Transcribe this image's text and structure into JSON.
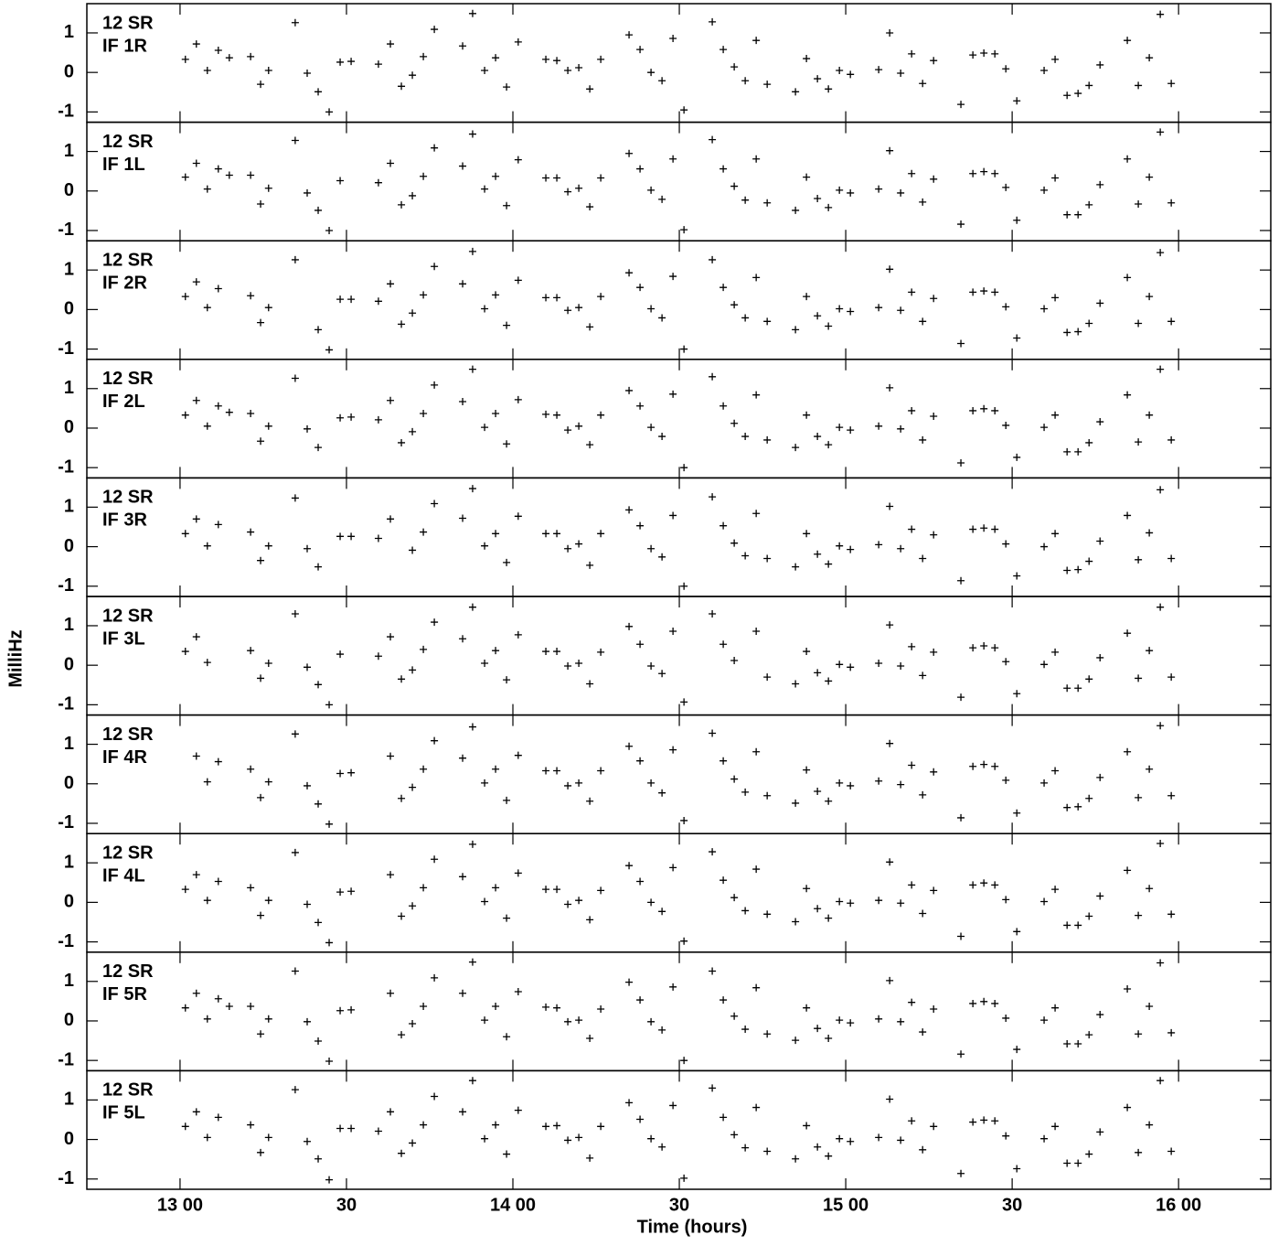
{
  "chart_data": {
    "type": "scatter",
    "ylabel": "MilliHz",
    "xlabel": "Time (hours)",
    "xlim": [
      12.72,
      16.277
    ],
    "xticks": [
      {
        "value": 13,
        "label": "13 00"
      },
      {
        "value": 13.5,
        "label": "30"
      },
      {
        "value": 14,
        "label": "14 00"
      },
      {
        "value": 14.5,
        "label": "30"
      },
      {
        "value": 15,
        "label": "15 00"
      },
      {
        "value": 15.5,
        "label": "30"
      },
      {
        "value": 16,
        "label": "16 00"
      }
    ],
    "ylim": [
      -1.26,
      1.74
    ],
    "yticks": [
      -1,
      0,
      1
    ],
    "color": "#000000",
    "x": [
      13.016,
      13.049,
      13.082,
      13.115,
      13.148,
      13.212,
      13.242,
      13.266,
      13.346,
      13.382,
      13.415,
      13.448,
      13.481,
      13.514,
      13.596,
      13.632,
      13.665,
      13.698,
      13.731,
      13.764,
      13.849,
      13.879,
      13.915,
      13.948,
      13.981,
      14.016,
      14.099,
      14.132,
      14.165,
      14.198,
      14.231,
      14.264,
      14.349,
      14.382,
      14.415,
      14.448,
      14.481,
      14.514,
      14.599,
      14.632,
      14.665,
      14.698,
      14.731,
      14.764,
      14.849,
      14.882,
      14.915,
      14.948,
      14.981,
      15.014,
      15.099,
      15.132,
      15.165,
      15.198,
      15.231,
      15.264,
      15.346,
      15.382,
      15.415,
      15.448,
      15.481,
      15.514,
      15.596,
      15.629,
      15.665,
      15.698,
      15.731,
      15.764,
      15.846,
      15.879,
      15.912,
      15.945,
      15.978
    ],
    "panels": [
      {
        "source": "12 SR",
        "channel": "IF 1R",
        "values": [
          0.33,
          0.72,
          0.05,
          0.56,
          0.37,
          0.4,
          -0.3,
          0.05,
          1.26,
          -0.02,
          -0.49,
          -1.0,
          0.26,
          0.28,
          0.21,
          0.72,
          -0.35,
          -0.07,
          0.4,
          1.09,
          0.67,
          1.49,
          0.05,
          0.37,
          -0.37,
          0.77,
          0.33,
          0.3,
          0.05,
          0.12,
          -0.42,
          0.33,
          0.95,
          0.58,
          0.0,
          -0.21,
          0.86,
          -0.95,
          1.28,
          0.58,
          0.14,
          -0.21,
          0.81,
          -0.3,
          -0.49,
          0.35,
          -0.16,
          -0.42,
          0.05,
          -0.05,
          0.07,
          1.0,
          -0.02,
          0.47,
          -0.28,
          0.3,
          -0.81,
          0.44,
          0.49,
          0.47,
          0.09,
          -0.72,
          0.05,
          0.33,
          -0.58,
          -0.53,
          -0.33,
          0.19,
          0.81,
          -0.33,
          0.37,
          1.47,
          -0.28
        ]
      },
      {
        "source": "12 SR",
        "channel": "IF 1L",
        "values": [
          0.35,
          0.7,
          0.05,
          0.56,
          0.4,
          0.4,
          -0.33,
          0.07,
          1.28,
          -0.05,
          -0.49,
          -1.0,
          0.26,
          null,
          0.21,
          0.7,
          -0.35,
          -0.12,
          0.37,
          1.09,
          0.63,
          1.44,
          0.05,
          0.37,
          -0.37,
          0.79,
          0.33,
          0.33,
          -0.02,
          0.07,
          -0.4,
          0.33,
          0.95,
          0.56,
          0.02,
          -0.21,
          0.81,
          -0.98,
          1.3,
          0.56,
          0.12,
          -0.23,
          0.81,
          -0.3,
          -0.49,
          0.35,
          -0.19,
          -0.42,
          0.02,
          -0.05,
          0.05,
          1.02,
          -0.05,
          0.44,
          -0.28,
          0.3,
          -0.84,
          0.44,
          0.49,
          0.44,
          0.09,
          -0.74,
          0.02,
          0.33,
          -0.6,
          -0.6,
          -0.35,
          0.16,
          0.81,
          -0.33,
          0.35,
          1.49,
          -0.3
        ]
      },
      {
        "source": "12 SR",
        "channel": "IF 2R",
        "values": [
          0.33,
          0.7,
          0.05,
          0.53,
          null,
          0.35,
          -0.33,
          0.05,
          1.26,
          null,
          -0.51,
          -1.02,
          0.26,
          0.26,
          0.21,
          0.65,
          -0.37,
          -0.09,
          0.37,
          1.09,
          0.65,
          1.47,
          0.02,
          0.37,
          -0.4,
          0.74,
          0.3,
          0.3,
          -0.02,
          0.05,
          -0.44,
          0.33,
          0.93,
          0.56,
          0.02,
          -0.21,
          0.84,
          -1.0,
          1.26,
          0.56,
          0.12,
          -0.21,
          0.81,
          -0.3,
          -0.51,
          0.33,
          -0.16,
          -0.42,
          0.02,
          -0.05,
          0.05,
          1.02,
          -0.02,
          0.44,
          -0.3,
          0.28,
          -0.86,
          0.44,
          0.47,
          0.44,
          0.07,
          -0.72,
          0.02,
          0.3,
          -0.58,
          -0.56,
          -0.35,
          0.16,
          0.81,
          -0.35,
          0.33,
          1.44,
          -0.3
        ]
      },
      {
        "source": "12 SR",
        "channel": "IF 2L",
        "values": [
          0.33,
          0.7,
          0.05,
          0.56,
          0.4,
          0.37,
          -0.33,
          0.05,
          1.26,
          -0.02,
          -0.49,
          null,
          0.26,
          0.28,
          0.21,
          0.7,
          -0.37,
          -0.09,
          0.37,
          1.09,
          0.67,
          1.49,
          0.02,
          0.37,
          -0.4,
          0.72,
          0.35,
          0.33,
          -0.05,
          0.05,
          -0.42,
          0.33,
          0.95,
          0.56,
          0.02,
          -0.21,
          0.86,
          -1.0,
          1.3,
          0.56,
          0.12,
          -0.21,
          0.84,
          -0.3,
          -0.49,
          0.33,
          -0.21,
          -0.42,
          0.02,
          -0.05,
          0.05,
          1.02,
          -0.02,
          0.44,
          -0.3,
          0.3,
          -0.88,
          0.44,
          0.49,
          0.44,
          0.07,
          -0.74,
          0.02,
          0.33,
          -0.6,
          -0.6,
          -0.37,
          0.16,
          0.84,
          -0.35,
          0.33,
          1.49,
          -0.3
        ]
      },
      {
        "source": "12 SR",
        "channel": "IF 3R",
        "values": [
          0.33,
          0.7,
          0.02,
          0.56,
          null,
          0.37,
          -0.35,
          0.02,
          1.23,
          -0.05,
          -0.51,
          null,
          0.26,
          0.26,
          0.21,
          0.7,
          null,
          -0.09,
          0.37,
          1.09,
          0.72,
          1.47,
          0.02,
          0.33,
          -0.4,
          0.77,
          0.33,
          0.33,
          -0.05,
          0.07,
          -0.47,
          0.33,
          0.93,
          0.53,
          -0.05,
          -0.26,
          0.79,
          -1.0,
          1.26,
          0.53,
          0.09,
          -0.23,
          0.84,
          -0.3,
          -0.51,
          0.33,
          -0.19,
          -0.44,
          0.02,
          -0.07,
          0.05,
          1.02,
          -0.05,
          0.44,
          -0.3,
          0.3,
          -0.86,
          0.44,
          0.47,
          0.44,
          0.07,
          -0.74,
          0.0,
          0.33,
          -0.6,
          -0.58,
          -0.37,
          0.14,
          0.79,
          -0.33,
          0.35,
          1.44,
          -0.3
        ]
      },
      {
        "source": "12 SR",
        "channel": "IF 3L",
        "values": [
          0.35,
          0.72,
          0.07,
          null,
          null,
          0.37,
          -0.33,
          0.05,
          1.3,
          -0.05,
          -0.49,
          -1.0,
          0.28,
          null,
          0.23,
          0.72,
          -0.35,
          -0.12,
          0.4,
          1.09,
          0.67,
          1.47,
          0.05,
          0.37,
          -0.37,
          0.77,
          0.35,
          0.35,
          -0.02,
          0.05,
          -0.47,
          0.33,
          0.98,
          0.53,
          -0.02,
          -0.21,
          0.86,
          -0.93,
          1.3,
          0.53,
          0.12,
          null,
          0.86,
          -0.3,
          -0.47,
          0.35,
          -0.19,
          -0.4,
          0.02,
          -0.05,
          0.05,
          1.02,
          -0.02,
          0.47,
          -0.26,
          0.33,
          -0.81,
          0.44,
          0.49,
          0.44,
          0.09,
          -0.72,
          0.02,
          0.33,
          -0.58,
          -0.58,
          -0.35,
          0.19,
          0.81,
          -0.33,
          0.37,
          1.47,
          -0.3
        ]
      },
      {
        "source": "12 SR",
        "channel": "IF 4R",
        "values": [
          null,
          0.7,
          0.05,
          0.56,
          null,
          0.37,
          -0.35,
          0.05,
          1.26,
          -0.05,
          -0.51,
          -1.02,
          0.26,
          0.28,
          null,
          0.7,
          -0.37,
          -0.09,
          0.37,
          1.09,
          0.65,
          1.44,
          0.02,
          0.37,
          -0.42,
          0.72,
          0.33,
          0.33,
          -0.05,
          0.02,
          -0.44,
          0.33,
          0.95,
          0.58,
          0.02,
          -0.23,
          0.86,
          -0.93,
          1.28,
          0.58,
          0.12,
          -0.21,
          0.81,
          -0.3,
          -0.49,
          0.35,
          -0.19,
          -0.44,
          0.02,
          -0.05,
          0.07,
          1.02,
          -0.02,
          0.47,
          -0.28,
          0.3,
          -0.86,
          0.44,
          0.49,
          0.44,
          0.09,
          -0.74,
          0.02,
          0.33,
          -0.6,
          -0.58,
          -0.37,
          0.16,
          0.81,
          -0.35,
          0.37,
          1.47,
          -0.3
        ]
      },
      {
        "source": "12 SR",
        "channel": "IF 4L",
        "values": [
          0.33,
          0.7,
          0.05,
          0.53,
          null,
          0.37,
          -0.33,
          0.05,
          1.26,
          -0.05,
          -0.51,
          -1.02,
          0.26,
          0.28,
          null,
          0.7,
          -0.35,
          -0.09,
          0.37,
          1.09,
          0.65,
          1.47,
          0.02,
          0.37,
          -0.4,
          0.74,
          0.33,
          0.33,
          -0.05,
          0.05,
          -0.44,
          0.3,
          0.93,
          0.53,
          0.0,
          -0.23,
          0.88,
          -0.98,
          1.28,
          0.56,
          0.12,
          -0.21,
          0.84,
          -0.3,
          -0.49,
          0.35,
          -0.16,
          -0.4,
          0.02,
          -0.02,
          0.05,
          1.02,
          -0.02,
          0.44,
          -0.28,
          0.3,
          -0.86,
          0.44,
          0.49,
          0.44,
          0.07,
          -0.74,
          0.02,
          0.33,
          -0.58,
          -0.58,
          -0.35,
          0.16,
          0.81,
          -0.33,
          0.35,
          1.49,
          -0.3
        ]
      },
      {
        "source": "12 SR",
        "channel": "IF 5R",
        "values": [
          0.33,
          0.7,
          0.05,
          0.56,
          0.37,
          0.37,
          -0.33,
          0.05,
          1.26,
          -0.02,
          -0.51,
          -1.02,
          0.26,
          0.28,
          null,
          0.7,
          -0.35,
          -0.07,
          0.37,
          1.09,
          0.7,
          1.49,
          0.02,
          0.37,
          -0.4,
          0.74,
          0.35,
          0.33,
          -0.02,
          0.02,
          -0.44,
          0.3,
          0.98,
          0.53,
          -0.02,
          -0.23,
          0.86,
          -1.0,
          1.26,
          0.53,
          0.12,
          -0.21,
          0.84,
          -0.33,
          -0.49,
          0.33,
          -0.19,
          -0.44,
          0.02,
          -0.05,
          0.05,
          1.02,
          -0.02,
          0.47,
          -0.28,
          0.3,
          -0.84,
          0.44,
          0.49,
          0.44,
          0.07,
          -0.72,
          0.02,
          0.33,
          -0.58,
          -0.58,
          -0.35,
          0.16,
          0.81,
          -0.33,
          0.37,
          1.47,
          -0.3
        ]
      },
      {
        "source": "12 SR",
        "channel": "IF 5L",
        "values": [
          0.33,
          0.7,
          0.05,
          0.56,
          null,
          0.37,
          -0.33,
          0.05,
          1.26,
          -0.05,
          -0.49,
          -1.02,
          0.28,
          0.28,
          0.21,
          0.7,
          -0.35,
          -0.09,
          0.37,
          1.09,
          0.7,
          1.49,
          0.02,
          0.37,
          -0.37,
          0.74,
          0.33,
          0.35,
          -0.02,
          0.05,
          -0.47,
          0.33,
          0.93,
          0.51,
          0.02,
          -0.19,
          0.86,
          -0.98,
          1.3,
          0.56,
          0.12,
          -0.21,
          0.81,
          -0.3,
          -0.49,
          0.35,
          -0.19,
          -0.42,
          0.02,
          -0.05,
          0.05,
          1.02,
          -0.02,
          0.47,
          -0.26,
          0.33,
          -0.86,
          0.44,
          0.49,
          0.47,
          0.09,
          -0.74,
          0.02,
          0.33,
          -0.6,
          -0.6,
          -0.37,
          0.19,
          0.81,
          -0.33,
          0.37,
          1.49,
          -0.3
        ]
      }
    ]
  }
}
